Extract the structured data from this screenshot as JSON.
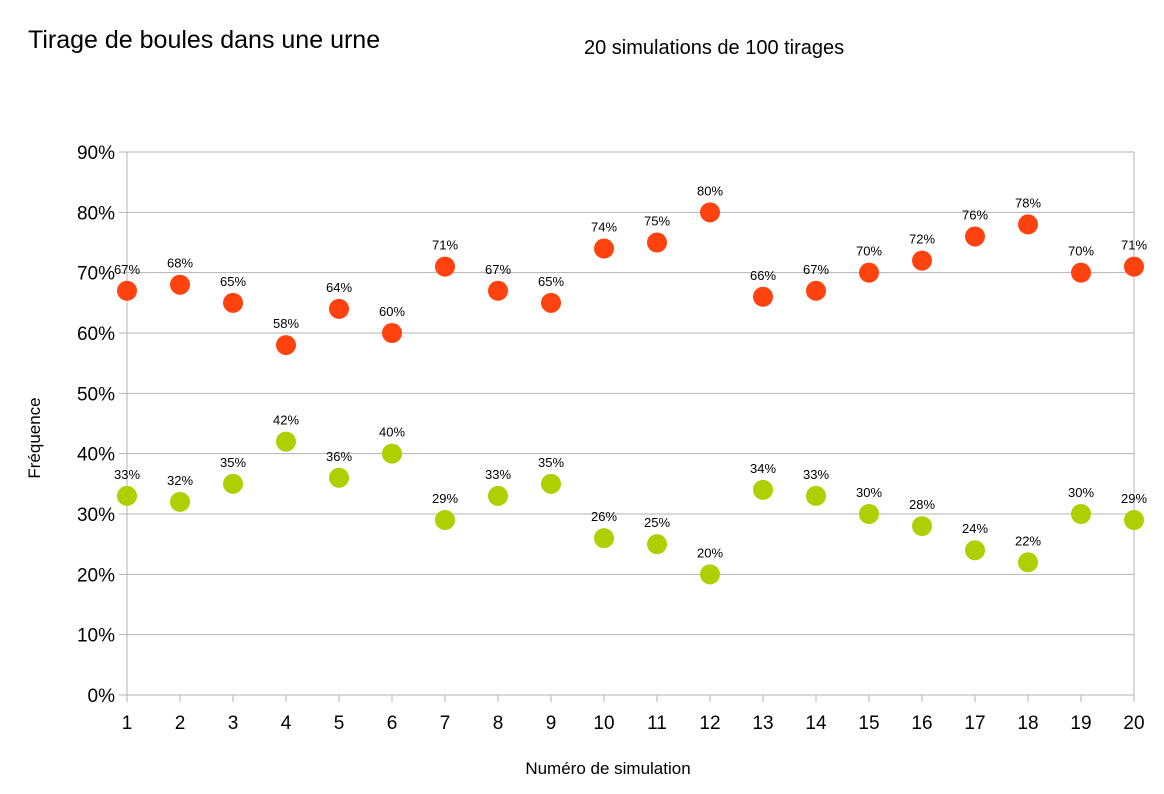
{
  "chart_data": {
    "type": "scatter",
    "title": "Tirage de boules dans une urne",
    "subtitle": "20 simulations de 100 tirages",
    "xlabel": "Numéro de simulation",
    "ylabel": "Fréquence",
    "x": [
      1,
      2,
      3,
      4,
      5,
      6,
      7,
      8,
      9,
      10,
      11,
      12,
      13,
      14,
      15,
      16,
      17,
      18,
      19,
      20
    ],
    "ylim": [
      0,
      90
    ],
    "yticks": [
      0,
      10,
      20,
      30,
      40,
      50,
      60,
      70,
      80,
      90
    ],
    "ytick_labels": [
      "0%",
      "10%",
      "20%",
      "30%",
      "40%",
      "50%",
      "60%",
      "70%",
      "80%",
      "90%"
    ],
    "grid": true,
    "series": [
      {
        "name": "rouge",
        "color": "#ff420e",
        "values": [
          67,
          68,
          65,
          58,
          64,
          60,
          71,
          67,
          65,
          74,
          75,
          80,
          66,
          67,
          70,
          72,
          76,
          78,
          70,
          71
        ]
      },
      {
        "name": "vert",
        "color": "#aecf00",
        "values": [
          33,
          32,
          35,
          42,
          36,
          40,
          29,
          33,
          35,
          26,
          25,
          20,
          34,
          33,
          30,
          28,
          24,
          22,
          30,
          29
        ]
      }
    ]
  }
}
